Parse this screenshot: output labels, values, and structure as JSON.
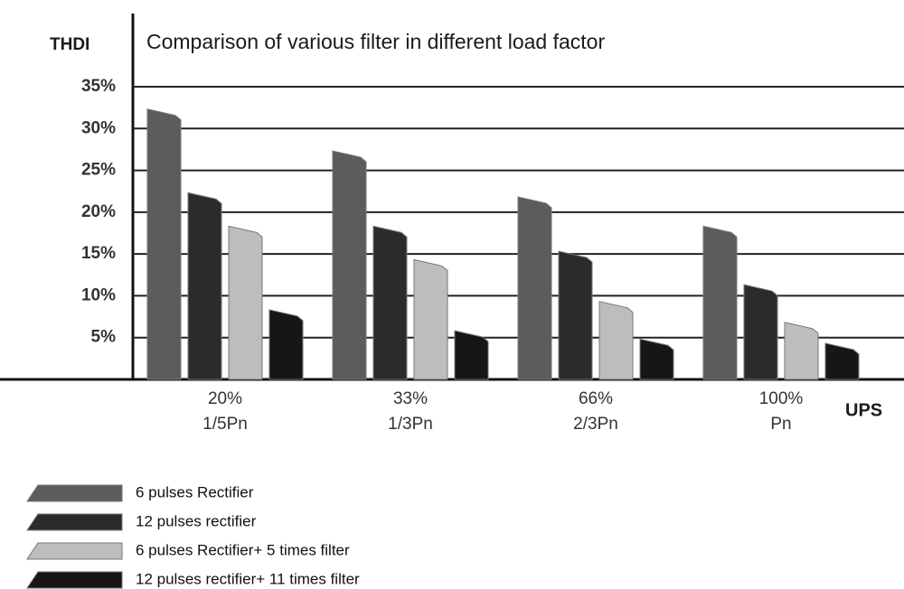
{
  "chart_data": {
    "type": "bar",
    "title": "Comparison of various filter in different load factor",
    "y_label": "THDI",
    "x_label": "UPS",
    "categories": [
      [
        "20%",
        "1/5Pn"
      ],
      [
        "33%",
        "1/3Pn"
      ],
      [
        "66%",
        "2/3Pn"
      ],
      [
        "100%",
        "Pn"
      ]
    ],
    "series": [
      {
        "name": "6 pulses Rectifier",
        "color": "#5c5c5c",
        "values": [
          32,
          27,
          21.5,
          18
        ]
      },
      {
        "name": "12 pulses rectifier",
        "color": "#2b2b2b",
        "values": [
          22,
          18,
          15,
          11
        ]
      },
      {
        "name": "6 pulses Rectifier+ 5 times filter",
        "color": "#bdbdbd",
        "values": [
          18,
          14,
          9,
          6.5
        ]
      },
      {
        "name": "12 pulses rectifier+ 11 times filter",
        "color": "#161616",
        "values": [
          8,
          5.5,
          4.5,
          4
        ]
      }
    ],
    "ylim": [
      0,
      35
    ],
    "yticks": [
      {
        "value": 5,
        "label": "5%"
      },
      {
        "value": 10,
        "label": "10%"
      },
      {
        "value": 15,
        "label": "15%"
      },
      {
        "value": 20,
        "label": "20%"
      },
      {
        "value": 25,
        "label": "25%"
      },
      {
        "value": 30,
        "label": "30%"
      },
      {
        "value": 35,
        "label": "35%"
      }
    ],
    "grid": true
  }
}
